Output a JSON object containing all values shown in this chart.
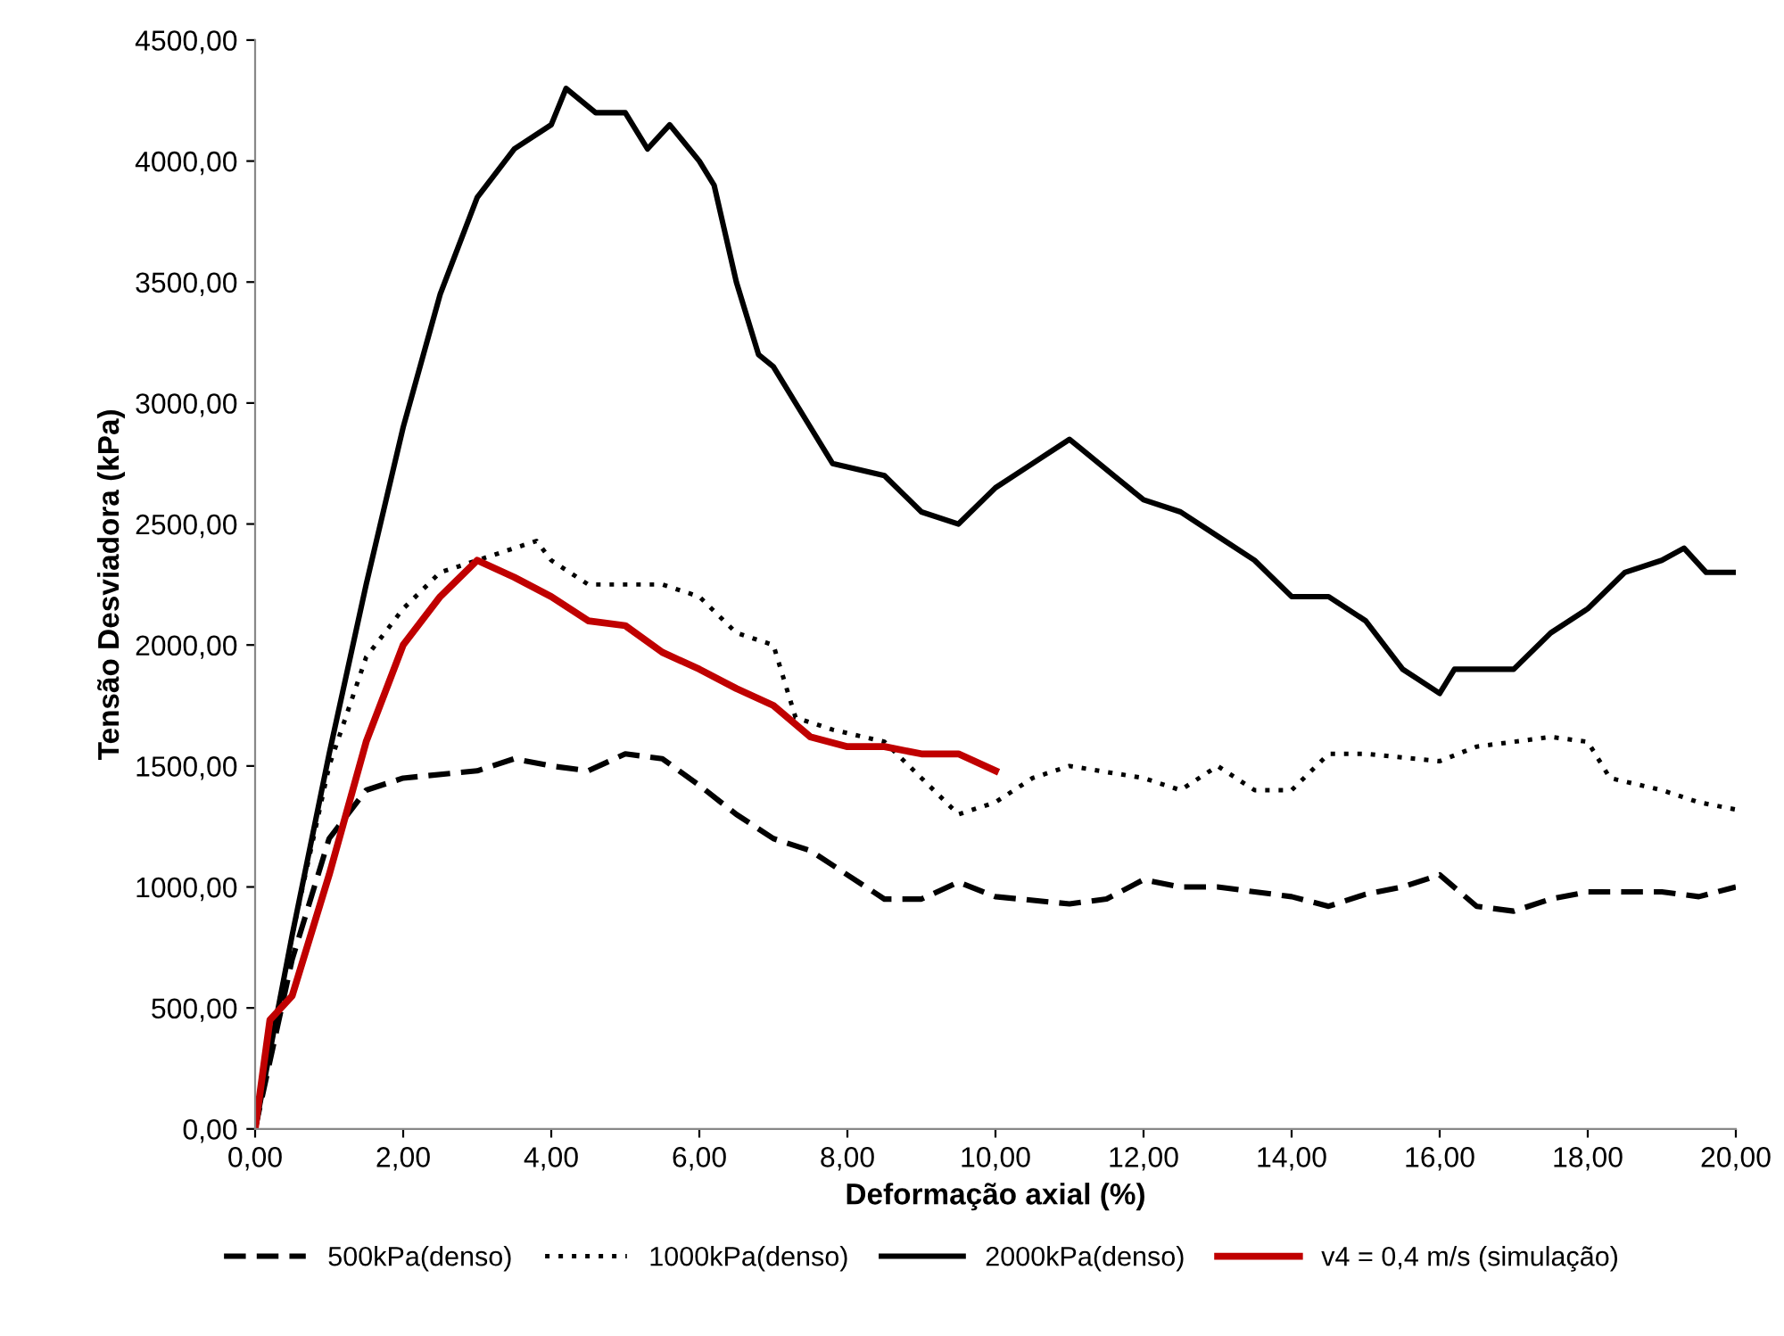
{
  "chart_data": {
    "type": "line",
    "xlabel": "Deformação axial (%)",
    "ylabel": "Tensão Desviadora (kPa)",
    "xlim": [
      0,
      20
    ],
    "ylim": [
      0,
      4500
    ],
    "xticks": [
      {
        "value": 0,
        "label": "0,00"
      },
      {
        "value": 2,
        "label": "2,00"
      },
      {
        "value": 4,
        "label": "4,00"
      },
      {
        "value": 6,
        "label": "6,00"
      },
      {
        "value": 8,
        "label": "8,00"
      },
      {
        "value": 10,
        "label": "10,00"
      },
      {
        "value": 12,
        "label": "12,00"
      },
      {
        "value": 14,
        "label": "14,00"
      },
      {
        "value": 16,
        "label": "16,00"
      },
      {
        "value": 18,
        "label": "18,00"
      },
      {
        "value": 20,
        "label": "20,00"
      }
    ],
    "yticks": [
      {
        "value": 0,
        "label": "0,00"
      },
      {
        "value": 500,
        "label": "500,00"
      },
      {
        "value": 1000,
        "label": "1000,00"
      },
      {
        "value": 1500,
        "label": "1500,00"
      },
      {
        "value": 2000,
        "label": "2000,00"
      },
      {
        "value": 2500,
        "label": "2500,00"
      },
      {
        "value": 3000,
        "label": "3000,00"
      },
      {
        "value": 3500,
        "label": "3500,00"
      },
      {
        "value": 4000,
        "label": "4000,00"
      },
      {
        "value": 4500,
        "label": "4500,00"
      }
    ],
    "grid": false,
    "legend": "bottom",
    "marker": "none",
    "series": [
      {
        "name": "500kPa(denso)",
        "color": "#000000",
        "line_style": "dashed",
        "x": [
          0,
          0.5,
          1,
          1.5,
          2,
          3,
          3.5,
          4,
          4.5,
          5,
          5.5,
          6,
          6.5,
          7,
          7.5,
          8,
          8.5,
          9,
          9.5,
          10,
          11,
          11.5,
          12,
          12.5,
          13,
          14,
          14.5,
          15,
          15.5,
          16,
          16.5,
          17,
          17.5,
          18,
          19,
          19.5,
          20
        ],
        "values": [
          0,
          700,
          1200,
          1400,
          1450,
          1480,
          1530,
          1500,
          1480,
          1550,
          1530,
          1420,
          1300,
          1200,
          1150,
          1050,
          950,
          950,
          1020,
          960,
          930,
          950,
          1030,
          1000,
          1000,
          960,
          920,
          970,
          1000,
          1050,
          920,
          900,
          950,
          980,
          980,
          960,
          1000
        ]
      },
      {
        "name": "1000kPa(denso)",
        "color": "#000000",
        "line_style": "dotted",
        "x": [
          0,
          0.5,
          1,
          1.5,
          2,
          2.5,
          3,
          3.5,
          3.8,
          4,
          4.5,
          5,
          5.5,
          6,
          6.5,
          7,
          7.3,
          7.8,
          8.5,
          9,
          9.5,
          10,
          10.5,
          11,
          12,
          12.5,
          13,
          13.5,
          14,
          14.5,
          15,
          16,
          16.5,
          17,
          17.5,
          18,
          18.3,
          19,
          19.5,
          20
        ],
        "values": [
          0,
          800,
          1500,
          1950,
          2150,
          2300,
          2350,
          2400,
          2430,
          2350,
          2250,
          2250,
          2250,
          2200,
          2050,
          2000,
          1700,
          1650,
          1600,
          1450,
          1300,
          1350,
          1450,
          1500,
          1450,
          1400,
          1500,
          1400,
          1400,
          1550,
          1550,
          1520,
          1580,
          1600,
          1620,
          1600,
          1450,
          1400,
          1350,
          1320
        ]
      },
      {
        "name": "2000kPa(denso)",
        "color": "#000000",
        "line_style": "solid",
        "x": [
          0,
          0.5,
          1,
          1.5,
          2,
          2.5,
          3,
          3.5,
          4,
          4.2,
          4.6,
          5,
          5.3,
          5.6,
          6,
          6.2,
          6.5,
          6.8,
          7,
          7.5,
          7.8,
          8.5,
          9,
          9.5,
          10,
          10.5,
          11,
          11.2,
          11.6,
          12,
          12.5,
          13,
          13.5,
          14,
          14.5,
          15,
          15.5,
          16,
          16.2,
          17,
          17.5,
          18,
          18.5,
          19,
          19.3,
          19.6,
          20
        ],
        "values": [
          0,
          800,
          1550,
          2250,
          2900,
          3450,
          3850,
          4050,
          4150,
          4300,
          4200,
          4200,
          4050,
          4150,
          4000,
          3900,
          3500,
          3200,
          3150,
          2900,
          2750,
          2700,
          2550,
          2500,
          2650,
          2750,
          2850,
          2800,
          2700,
          2600,
          2550,
          2450,
          2350,
          2200,
          2200,
          2100,
          1900,
          1800,
          1900,
          1900,
          2050,
          2150,
          2300,
          2350,
          2400,
          2300,
          2300
        ]
      },
      {
        "name": "v4 = 0,4 m/s (simulação)",
        "color": "#c00000",
        "line_style": "solid",
        "x": [
          0,
          0.2,
          0.5,
          1,
          1.5,
          2,
          2.5,
          3,
          3.5,
          4,
          4.5,
          5,
          5.5,
          6,
          6.5,
          7,
          7.5,
          8,
          8.5,
          9,
          9.5,
          10
        ],
        "values": [
          0,
          450,
          550,
          1050,
          1600,
          2000,
          2200,
          2350,
          2280,
          2200,
          2100,
          2080,
          1970,
          1900,
          1820,
          1750,
          1620,
          1580,
          1580,
          1550,
          1550,
          1480
        ]
      }
    ]
  }
}
